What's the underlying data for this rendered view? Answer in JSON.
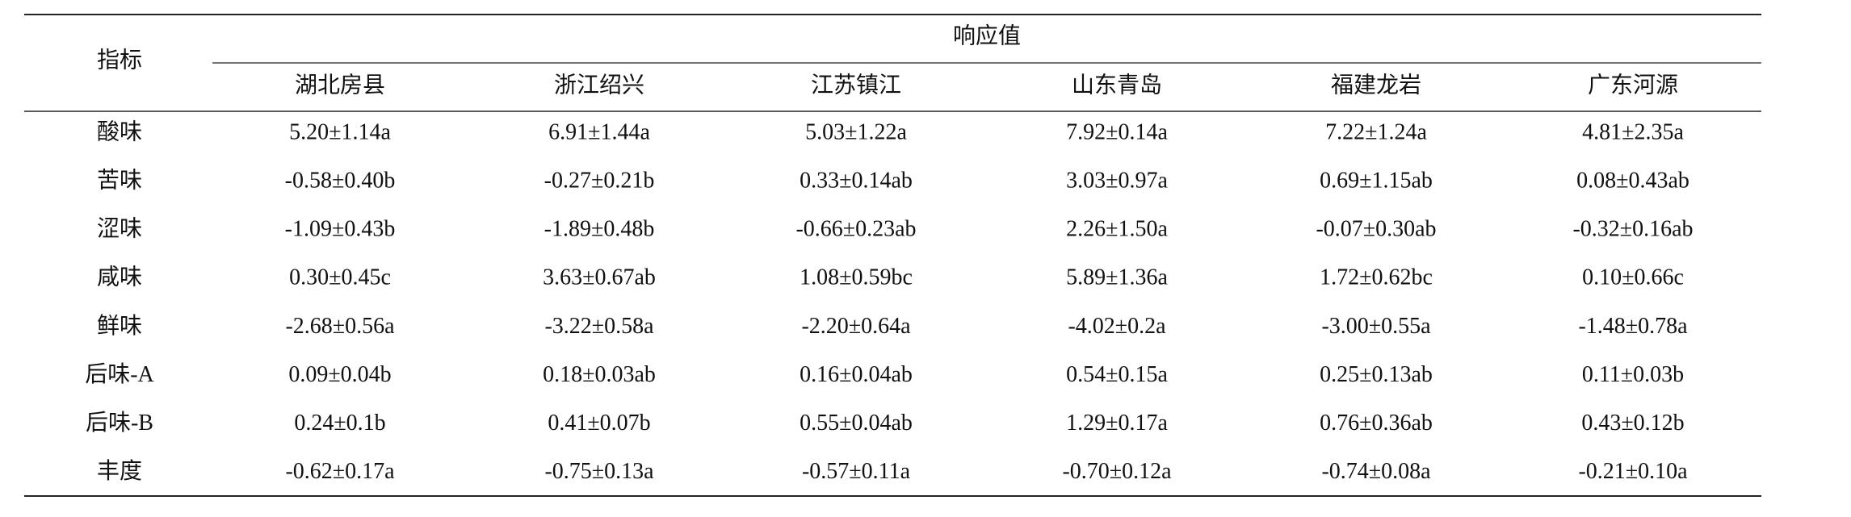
{
  "table": {
    "corner": "指标",
    "group": "响应值",
    "columns": [
      "湖北房县",
      "浙江绍兴",
      "江苏镇江",
      "山东青岛",
      "福建龙岩",
      "广东河源"
    ],
    "rows": [
      [
        "酸味",
        "5.20±1.14a",
        "6.91±1.44a",
        "5.03±1.22a",
        "7.92±0.14a",
        "7.22±1.24a",
        "4.81±2.35a"
      ],
      [
        "苦味",
        "-0.58±0.40b",
        "-0.27±0.21b",
        "0.33±0.14ab",
        "3.03±0.97a",
        "0.69±1.15ab",
        "0.08±0.43ab"
      ],
      [
        "涩味",
        "-1.09±0.43b",
        "-1.89±0.48b",
        "-0.66±0.23ab",
        "2.26±1.50a",
        "-0.07±0.30ab",
        "-0.32±0.16ab"
      ],
      [
        "咸味",
        "0.30±0.45c",
        "3.63±0.67ab",
        "1.08±0.59bc",
        "5.89±1.36a",
        "1.72±0.62bc",
        "0.10±0.66c"
      ],
      [
        "鲜味",
        "-2.68±0.56a",
        "-3.22±0.58a",
        "-2.20±0.64a",
        "-4.02±0.2a",
        "-3.00±0.55a",
        "-1.48±0.78a"
      ],
      [
        "后味-A",
        "0.09±0.04b",
        "0.18±0.03ab",
        "0.16±0.04ab",
        "0.54±0.15a",
        "0.25±0.13ab",
        "0.11±0.03b"
      ],
      [
        "后味-B",
        "0.24±0.1b",
        "0.41±0.07b",
        "0.55±0.04ab",
        "1.29±0.17a",
        "0.76±0.36ab",
        "0.43±0.12b"
      ],
      [
        "丰度",
        "-0.62±0.17a",
        "-0.75±0.13a",
        "-0.57±0.11a",
        "-0.70±0.12a",
        "-0.74±0.08a",
        "-0.21±0.10a"
      ]
    ]
  }
}
